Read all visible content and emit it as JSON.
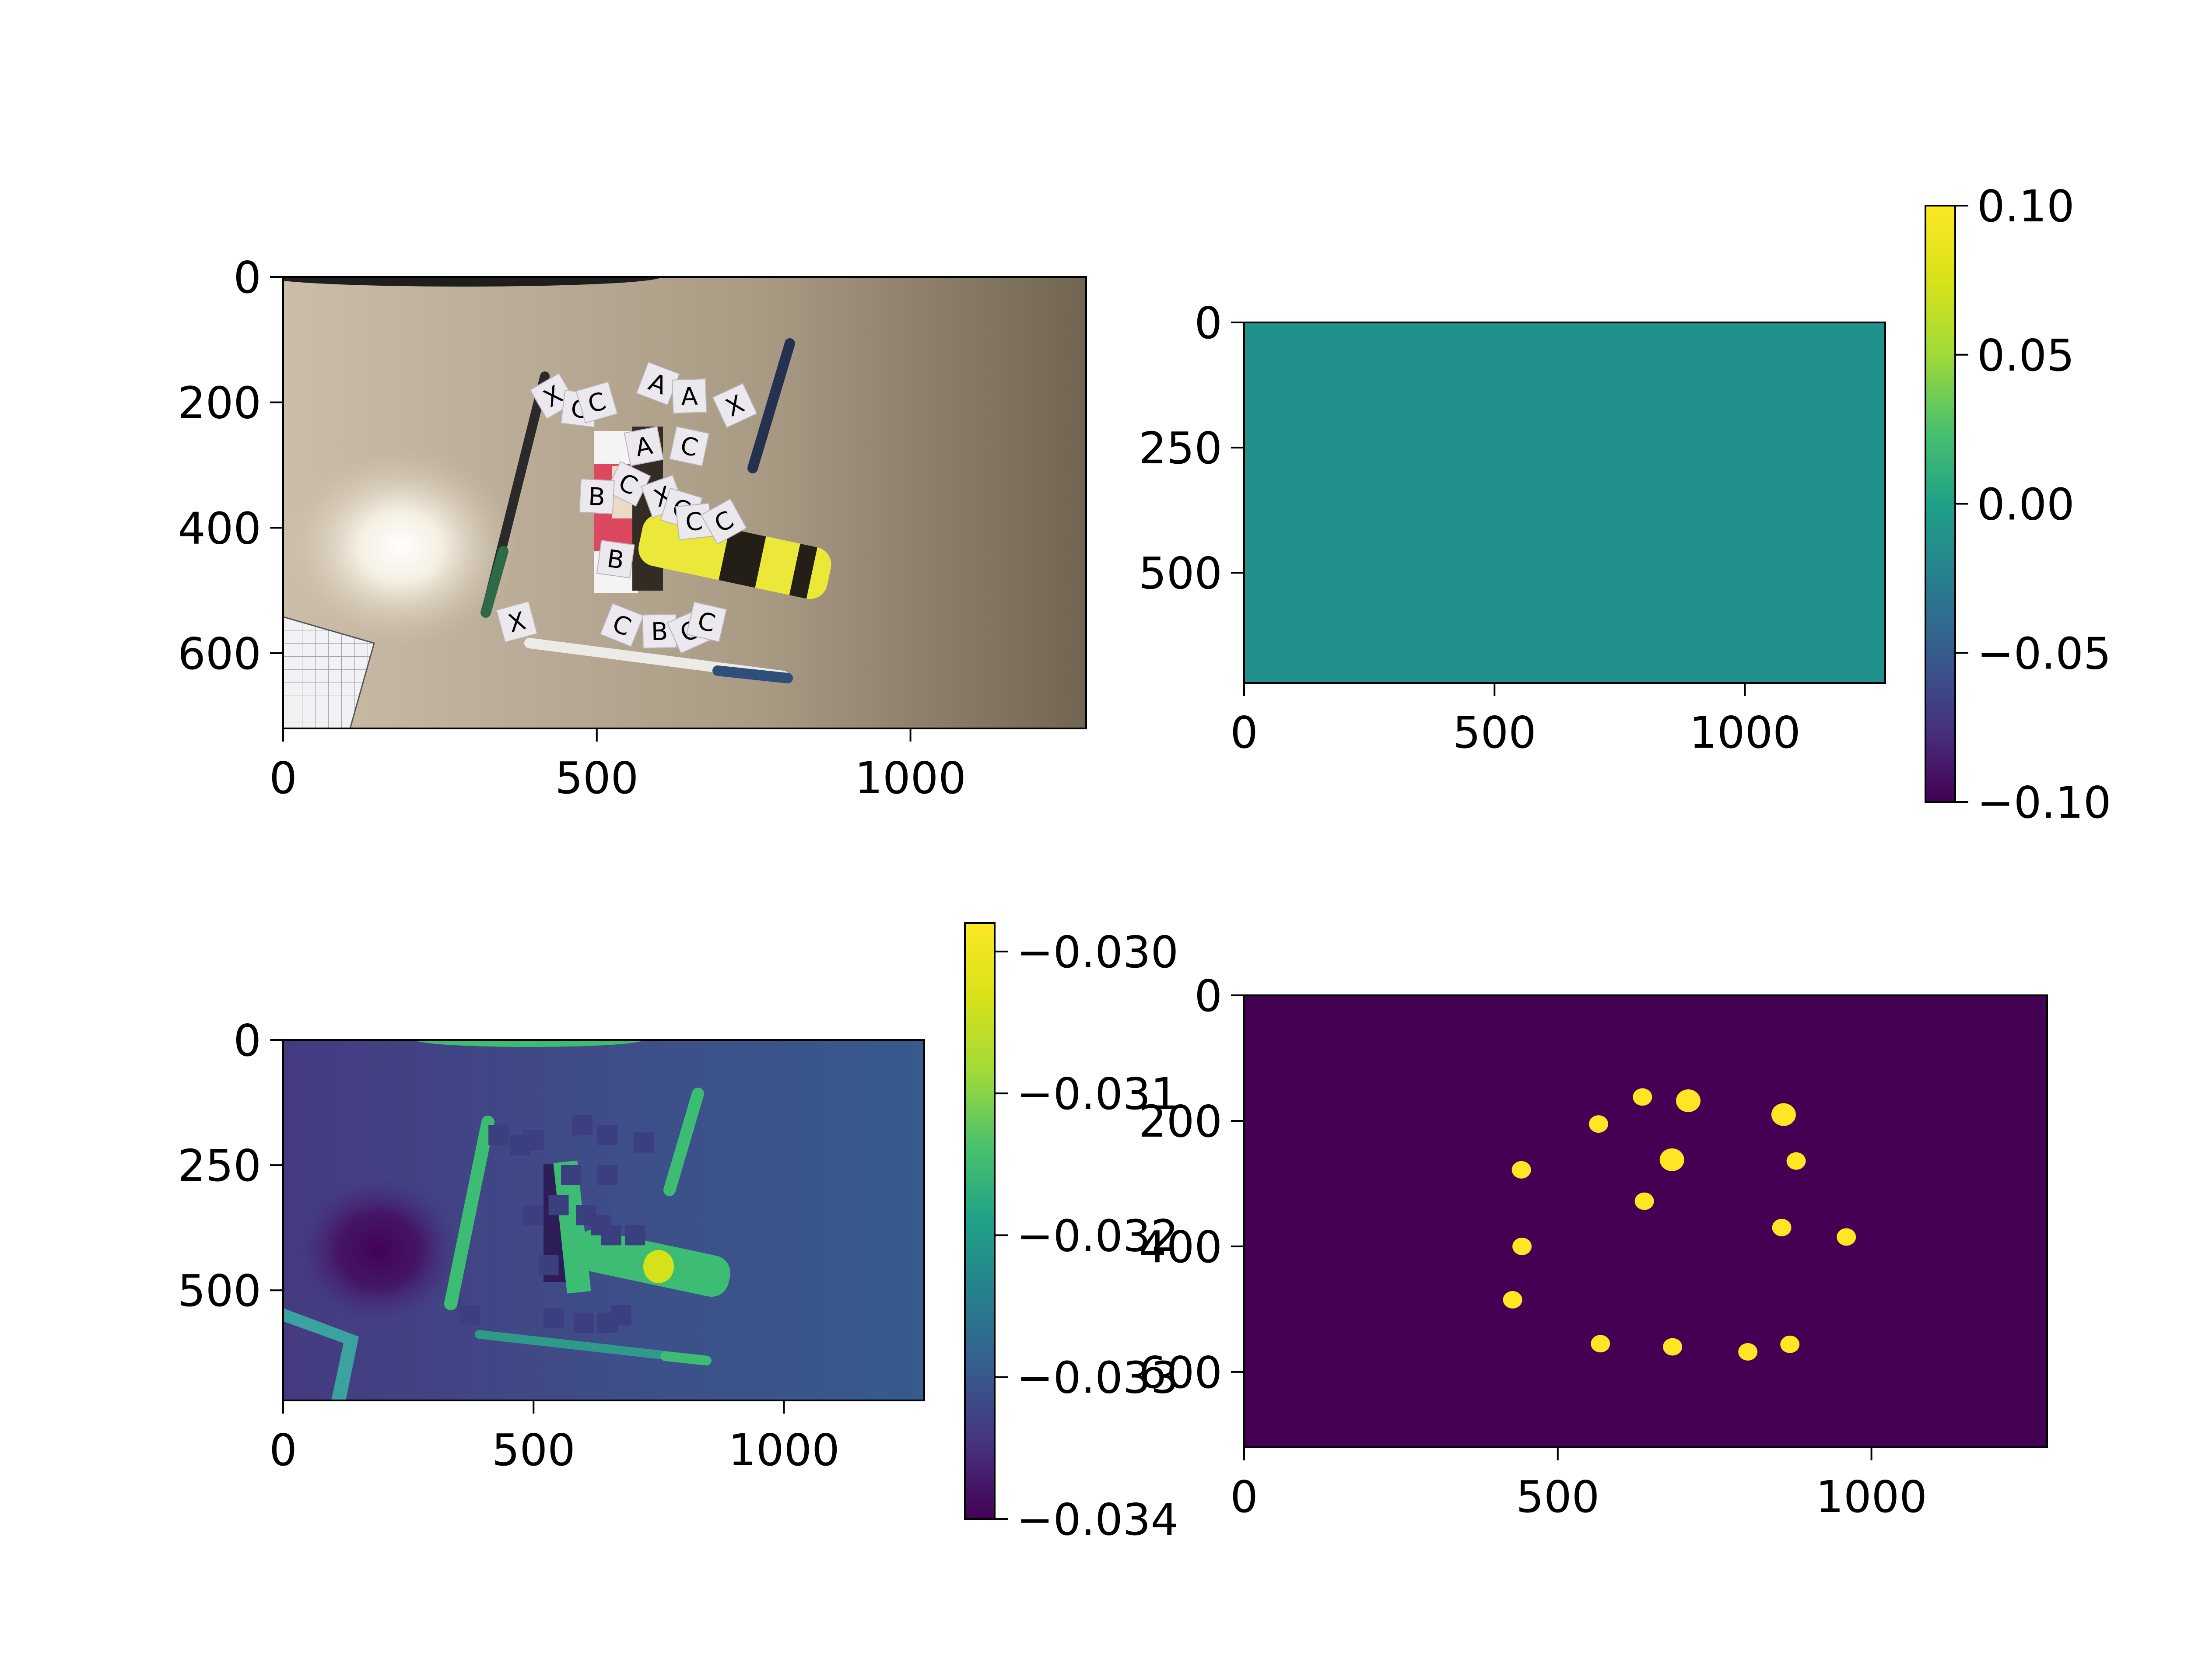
{
  "chart_data": [
    {
      "type": "heatmap",
      "content": "photograph",
      "subject": "desk with pens, glue stick, highlighter and paper letter cards",
      "xlim": [
        0,
        1280
      ],
      "ylim": [
        720,
        0
      ],
      "x_ticks": [
        0,
        500,
        1000
      ],
      "y_ticks": [
        0,
        200,
        400,
        600
      ],
      "x_tick_labels": [
        "0",
        "500",
        "1000"
      ],
      "y_tick_labels": [
        "0",
        "200",
        "400",
        "600"
      ],
      "card_letters": [
        "X",
        "C",
        "C",
        "A",
        "A",
        "X",
        "C",
        "A",
        "C",
        "B",
        "X",
        "C",
        "C",
        "C",
        "B",
        "X",
        "C",
        "B",
        "C",
        "C"
      ]
    },
    {
      "type": "heatmap",
      "xlim": [
        0,
        1280
      ],
      "ylim": [
        720,
        0
      ],
      "x_ticks": [
        0,
        500,
        1000
      ],
      "y_ticks": [
        0,
        250,
        500
      ],
      "x_tick_labels": [
        "0",
        "500",
        "1000"
      ],
      "y_tick_labels": [
        "0",
        "250",
        "500"
      ],
      "uniform_value": 0.0,
      "colormap": "viridis",
      "colorbar": {
        "range": [
          -0.1,
          0.1
        ],
        "ticks": [
          -0.1,
          -0.05,
          0.0,
          0.05,
          0.1
        ],
        "tick_labels": [
          "−0.10",
          "−0.05",
          "0.00",
          "0.05",
          "0.10"
        ]
      }
    },
    {
      "type": "heatmap",
      "xlim": [
        0,
        1280
      ],
      "ylim": [
        720,
        0
      ],
      "x_ticks": [
        0,
        500,
        1000
      ],
      "y_ticks": [
        0,
        250,
        500
      ],
      "x_tick_labels": [
        "0",
        "500",
        "1000"
      ],
      "y_tick_labels": [
        "0",
        "250",
        "500"
      ],
      "colormap": "viridis",
      "background_value": -0.0325,
      "dark_spot": {
        "x": 190,
        "y": 420,
        "value": -0.034
      },
      "colorbar": {
        "range": [
          -0.034,
          -0.0298
        ],
        "ticks": [
          -0.034,
          -0.033,
          -0.032,
          -0.031,
          -0.03
        ],
        "tick_labels": [
          "−0.034",
          "−0.033",
          "−0.032",
          "−0.031",
          "−0.030"
        ]
      }
    },
    {
      "type": "heatmap",
      "xlim": [
        0,
        1280
      ],
      "ylim": [
        720,
        0
      ],
      "x_ticks": [
        0,
        500,
        1000
      ],
      "y_ticks": [
        0,
        200,
        400,
        600
      ],
      "x_tick_labels": [
        "0",
        "500",
        "1000"
      ],
      "y_tick_labels": [
        "0",
        "200",
        "400",
        "600"
      ],
      "colormap": "viridis",
      "background_value": 0,
      "blob_value": 1,
      "blobs": [
        {
          "x": 565,
          "y": 205
        },
        {
          "x": 635,
          "y": 162
        },
        {
          "x": 708,
          "y": 168
        },
        {
          "x": 860,
          "y": 190
        },
        {
          "x": 682,
          "y": 262
        },
        {
          "x": 880,
          "y": 264
        },
        {
          "x": 442,
          "y": 278
        },
        {
          "x": 638,
          "y": 328
        },
        {
          "x": 857,
          "y": 370
        },
        {
          "x": 960,
          "y": 385
        },
        {
          "x": 443,
          "y": 400
        },
        {
          "x": 428,
          "y": 485
        },
        {
          "x": 568,
          "y": 555
        },
        {
          "x": 683,
          "y": 560
        },
        {
          "x": 803,
          "y": 568
        },
        {
          "x": 870,
          "y": 556
        }
      ]
    }
  ]
}
